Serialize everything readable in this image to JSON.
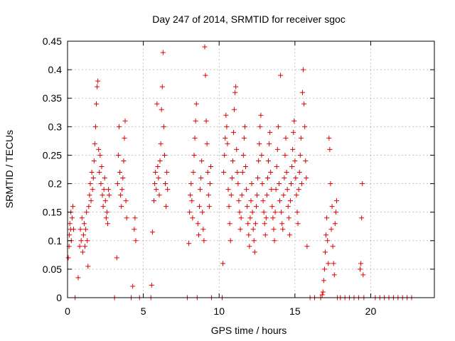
{
  "chart_data": {
    "type": "scatter",
    "title": "Day 247 of 2014, SRMTID for receiver sgoc",
    "xlabel": "GPS time / hours",
    "ylabel": "SRMTID / TECUs",
    "xlim": [
      0,
      24.2
    ],
    "ylim": [
      0,
      0.45
    ],
    "xticks": [
      0,
      5,
      10,
      15,
      20
    ],
    "xtick_labels": [
      "0",
      "5",
      "10",
      "15",
      "20"
    ],
    "yticks": [
      0,
      0.05,
      0.1,
      0.15,
      0.2,
      0.25,
      0.3,
      0.35,
      0.4,
      0.45
    ],
    "ytick_labels": [
      "0",
      "0.05",
      "0.1",
      "0.15",
      "0.2",
      "0.25",
      "0.3",
      "0.35",
      "0.4",
      "0.45"
    ],
    "grid": true,
    "marker": "+",
    "color": "#e00000",
    "series": [
      {
        "name": "SRMTID",
        "points": [
          [
            0.05,
            0.07
          ],
          [
            0.1,
            0.09
          ],
          [
            0.12,
            0.11
          ],
          [
            0.15,
            0.13
          ],
          [
            0.2,
            0.12
          ],
          [
            0.22,
            0.15
          ],
          [
            0.25,
            0.1
          ],
          [
            0.3,
            0.14
          ],
          [
            0.35,
            0.16
          ],
          [
            0.4,
            0.12
          ],
          [
            0.5,
            0.0
          ],
          [
            0.7,
            0.035
          ],
          [
            0.8,
            0.09
          ],
          [
            0.85,
            0.12
          ],
          [
            0.9,
            0.1
          ],
          [
            0.95,
            0.14
          ],
          [
            1.0,
            0.08
          ],
          [
            1.05,
            0.11
          ],
          [
            1.1,
            0.13
          ],
          [
            1.15,
            0.09
          ],
          [
            1.2,
            0.12
          ],
          [
            1.25,
            0.15
          ],
          [
            1.3,
            0.1
          ],
          [
            1.35,
            0.055
          ],
          [
            1.4,
            0.16
          ],
          [
            1.45,
            0.18
          ],
          [
            1.5,
            0.2
          ],
          [
            1.55,
            0.17
          ],
          [
            1.6,
            0.22
          ],
          [
            1.65,
            0.19
          ],
          [
            1.7,
            0.21
          ],
          [
            1.75,
            0.24
          ],
          [
            1.8,
            0.27
          ],
          [
            1.85,
            0.3
          ],
          [
            1.9,
            0.34
          ],
          [
            1.95,
            0.37
          ],
          [
            2.0,
            0.38
          ],
          [
            2.05,
            0.26
          ],
          [
            2.1,
            0.22
          ],
          [
            2.15,
            0.25
          ],
          [
            2.2,
            0.2
          ],
          [
            2.25,
            0.23
          ],
          [
            2.3,
            0.18
          ],
          [
            2.35,
            0.16
          ],
          [
            2.4,
            0.19
          ],
          [
            2.45,
            0.21
          ],
          [
            2.5,
            0.17
          ],
          [
            2.55,
            0.14
          ],
          [
            2.6,
            0.15
          ],
          [
            2.65,
            0.13
          ],
          [
            2.7,
            0.19
          ],
          [
            2.75,
            0.18
          ],
          [
            3.1,
            0.0
          ],
          [
            3.25,
            0.07
          ],
          [
            3.3,
            0.2
          ],
          [
            3.35,
            0.25
          ],
          [
            3.4,
            0.3
          ],
          [
            3.45,
            0.22
          ],
          [
            3.5,
            0.18
          ],
          [
            3.55,
            0.16
          ],
          [
            3.6,
            0.19
          ],
          [
            3.65,
            0.21
          ],
          [
            3.7,
            0.24
          ],
          [
            3.75,
            0.28
          ],
          [
            3.8,
            0.31
          ],
          [
            3.85,
            0.17
          ],
          [
            3.9,
            0.14
          ],
          [
            4.2,
            0.0
          ],
          [
            4.3,
            0.02
          ],
          [
            4.4,
            0.12
          ],
          [
            4.45,
            0.14
          ],
          [
            4.5,
            0.1
          ],
          [
            4.75,
            0.0
          ],
          [
            5.5,
            0.0
          ],
          [
            5.55,
            0.022
          ],
          [
            5.6,
            0.115
          ],
          [
            5.7,
            0.17
          ],
          [
            5.75,
            0.2
          ],
          [
            5.8,
            0.22
          ],
          [
            5.85,
            0.19
          ],
          [
            5.9,
            0.34
          ],
          [
            5.95,
            0.23
          ],
          [
            6.0,
            0.21
          ],
          [
            6.05,
            0.18
          ],
          [
            6.1,
            0.24
          ],
          [
            6.15,
            0.27
          ],
          [
            6.2,
            0.33
          ],
          [
            6.25,
            0.37
          ],
          [
            6.3,
            0.43
          ],
          [
            6.35,
            0.3
          ],
          [
            6.4,
            0.25
          ],
          [
            6.45,
            0.2
          ],
          [
            6.5,
            0.16
          ],
          [
            6.55,
            0.22
          ],
          [
            6.6,
            0.19
          ],
          [
            7.9,
            0.0
          ],
          [
            8.0,
            0.095
          ],
          [
            8.05,
            0.15
          ],
          [
            8.1,
            0.18
          ],
          [
            8.15,
            0.2
          ],
          [
            8.2,
            0.17
          ],
          [
            8.25,
            0.14
          ],
          [
            8.3,
            0.22
          ],
          [
            8.35,
            0.25
          ],
          [
            8.4,
            0.28
          ],
          [
            8.45,
            0.31
          ],
          [
            8.5,
            0.34
          ],
          [
            8.55,
            0.0
          ],
          [
            8.6,
            0.13
          ],
          [
            8.65,
            0.11
          ],
          [
            8.7,
            0.16
          ],
          [
            8.75,
            0.19
          ],
          [
            8.8,
            0.21
          ],
          [
            8.85,
            0.24
          ],
          [
            8.9,
            0.15
          ],
          [
            8.95,
            0.12
          ],
          [
            9.0,
            0.1
          ],
          [
            9.05,
            0.44
          ],
          [
            9.1,
            0.39
          ],
          [
            9.15,
            0.31
          ],
          [
            9.2,
            0.27
          ],
          [
            9.25,
            0.22
          ],
          [
            9.3,
            0.18
          ],
          [
            9.35,
            0.16
          ],
          [
            9.4,
            0.2
          ],
          [
            9.45,
            0.23
          ],
          [
            9.5,
            0.0
          ],
          [
            10.2,
            0.0
          ],
          [
            10.25,
            0.06
          ],
          [
            10.3,
            0.22
          ],
          [
            10.35,
            0.25
          ],
          [
            10.4,
            0.28
          ],
          [
            10.45,
            0.32
          ],
          [
            10.5,
            0.3
          ],
          [
            10.55,
            0.27
          ],
          [
            10.6,
            0.19
          ],
          [
            10.65,
            0.16
          ],
          [
            10.7,
            0.13
          ],
          [
            10.75,
            0.1
          ],
          [
            10.8,
            0.18
          ],
          [
            10.85,
            0.21
          ],
          [
            10.9,
            0.24
          ],
          [
            10.95,
            0.29
          ],
          [
            11.0,
            0.33
          ],
          [
            11.05,
            0.36
          ],
          [
            11.1,
            0.37
          ],
          [
            11.15,
            0.26
          ],
          [
            11.2,
            0.22
          ],
          [
            11.25,
            0.2
          ],
          [
            11.3,
            0.17
          ],
          [
            11.35,
            0.15
          ],
          [
            11.4,
            0.12
          ],
          [
            11.45,
            0.14
          ],
          [
            11.5,
            0.18
          ],
          [
            11.55,
            0.22
          ],
          [
            11.6,
            0.25
          ],
          [
            11.65,
            0.28
          ],
          [
            11.7,
            0.3
          ],
          [
            11.75,
            0.23
          ],
          [
            11.8,
            0.19
          ],
          [
            11.85,
            0.16
          ],
          [
            11.9,
            0.13
          ],
          [
            11.95,
            0.11
          ],
          [
            12.0,
            0.09
          ],
          [
            12.05,
            0.14
          ],
          [
            12.1,
            0.17
          ],
          [
            12.15,
            0.2
          ],
          [
            12.2,
            0.15
          ],
          [
            12.25,
            0.12
          ],
          [
            12.3,
            0.1
          ],
          [
            12.35,
            0.08
          ],
          [
            12.4,
            0.13
          ],
          [
            12.45,
            0.16
          ],
          [
            12.5,
            0.18
          ],
          [
            12.55,
            0.21
          ],
          [
            12.6,
            0.24
          ],
          [
            12.65,
            0.27
          ],
          [
            12.7,
            0.3
          ],
          [
            12.75,
            0.32
          ],
          [
            12.8,
            0.25
          ],
          [
            12.85,
            0.2
          ],
          [
            12.9,
            0.17
          ],
          [
            12.95,
            0.15
          ],
          [
            13.0,
            0.13
          ],
          [
            13.05,
            0.11
          ],
          [
            13.1,
            0.14
          ],
          [
            13.15,
            0.18
          ],
          [
            13.2,
            0.21
          ],
          [
            13.25,
            0.24
          ],
          [
            13.3,
            0.27
          ],
          [
            13.35,
            0.29
          ],
          [
            13.4,
            0.22
          ],
          [
            13.45,
            0.19
          ],
          [
            13.5,
            0.16
          ],
          [
            13.55,
            0.14
          ],
          [
            13.6,
            0.12
          ],
          [
            13.65,
            0.1
          ],
          [
            13.7,
            0.15
          ],
          [
            13.75,
            0.19
          ],
          [
            13.8,
            0.23
          ],
          [
            13.85,
            0.26
          ],
          [
            13.9,
            0.3
          ],
          [
            13.95,
            0.2
          ],
          [
            14.0,
            0.17
          ],
          [
            14.05,
            0.39
          ],
          [
            14.1,
            0.15
          ],
          [
            14.15,
            0.13
          ],
          [
            14.2,
            0.12
          ],
          [
            14.25,
            0.18
          ],
          [
            14.3,
            0.21
          ],
          [
            14.35,
            0.25
          ],
          [
            14.4,
            0.28
          ],
          [
            14.45,
            0.22
          ],
          [
            14.5,
            0.19
          ],
          [
            14.55,
            0.16
          ],
          [
            14.6,
            0.14
          ],
          [
            14.65,
            0.11
          ],
          [
            14.7,
            0.17
          ],
          [
            14.75,
            0.2
          ],
          [
            14.8,
            0.23
          ],
          [
            14.85,
            0.26
          ],
          [
            14.9,
            0.29
          ],
          [
            14.95,
            0.31
          ],
          [
            15.0,
            0.24
          ],
          [
            15.05,
            0.21
          ],
          [
            15.1,
            0.18
          ],
          [
            15.15,
            0.15
          ],
          [
            15.2,
            0.13
          ],
          [
            15.25,
            0.19
          ],
          [
            15.3,
            0.22
          ],
          [
            15.35,
            0.25
          ],
          [
            15.4,
            0.28
          ],
          [
            15.45,
            0.2
          ],
          [
            15.5,
            0.36
          ],
          [
            15.55,
            0.4
          ],
          [
            15.6,
            0.34
          ],
          [
            15.65,
            0.3
          ],
          [
            15.7,
            0.24
          ],
          [
            15.75,
            0.21
          ],
          [
            15.8,
            0.09
          ],
          [
            16.0,
            0.0
          ],
          [
            16.3,
            0.0
          ],
          [
            16.7,
            0.0
          ],
          [
            16.8,
            0.005
          ],
          [
            16.85,
            0.01
          ],
          [
            16.9,
            0.03
          ],
          [
            16.95,
            0.05
          ],
          [
            17.0,
            0.08
          ],
          [
            17.05,
            0.11
          ],
          [
            17.1,
            0.14
          ],
          [
            17.15,
            0.1
          ],
          [
            17.2,
            0.06
          ],
          [
            17.25,
            0.28
          ],
          [
            17.3,
            0.26
          ],
          [
            17.35,
            0.2
          ],
          [
            17.4,
            0.12
          ],
          [
            17.45,
            0.16
          ],
          [
            17.5,
            0.09
          ],
          [
            17.55,
            0.06
          ],
          [
            17.6,
            0.04
          ],
          [
            17.65,
            0.13
          ],
          [
            17.7,
            0.15
          ],
          [
            17.75,
            0.17
          ],
          [
            17.8,
            0.0
          ],
          [
            18.0,
            0.0
          ],
          [
            18.3,
            0.0
          ],
          [
            18.6,
            0.0
          ],
          [
            18.9,
            0.0
          ],
          [
            19.2,
            0.0
          ],
          [
            19.3,
            0.05
          ],
          [
            19.35,
            0.06
          ],
          [
            19.4,
            0.14
          ],
          [
            19.45,
            0.2
          ],
          [
            19.5,
            0.04
          ],
          [
            19.55,
            0.0
          ],
          [
            20.3,
            0.0
          ],
          [
            20.6,
            0.0
          ],
          [
            20.9,
            0.0
          ],
          [
            21.2,
            0.0
          ],
          [
            21.5,
            0.0
          ],
          [
            21.8,
            0.0
          ],
          [
            22.1,
            0.0
          ],
          [
            22.4,
            0.0
          ],
          [
            22.7,
            0.0
          ]
        ]
      }
    ]
  }
}
